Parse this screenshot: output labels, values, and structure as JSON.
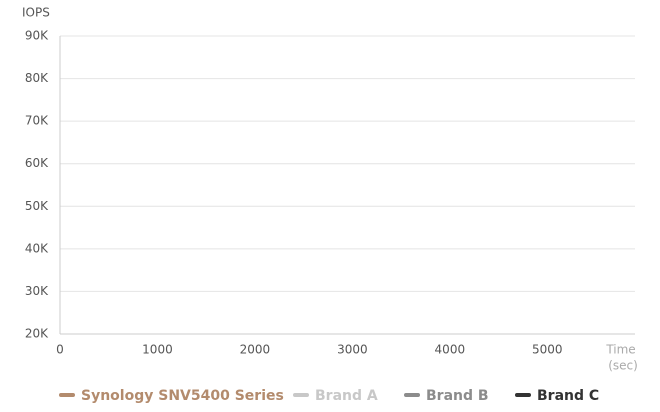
{
  "chart_data": {
    "type": "line",
    "ylabel": "IOPS",
    "xlabel": [
      "Time",
      "(sec)"
    ],
    "x": [],
    "series": [
      {
        "name": "Synology SNV5400 Series",
        "color": "#b38b6d",
        "values": []
      },
      {
        "name": "Brand A",
        "color": "#c8c8c8",
        "values": []
      },
      {
        "name": "Brand B",
        "color": "#8c8c8c",
        "values": []
      },
      {
        "name": "Brand C",
        "color": "#333333",
        "values": []
      }
    ],
    "xlim": [
      0,
      5900
    ],
    "xticks": [
      0,
      1000,
      2000,
      3000,
      4000,
      5000
    ],
    "ylim": [
      20000,
      90000
    ],
    "yticks": [
      {
        "value": 20000,
        "label": "20K"
      },
      {
        "value": 30000,
        "label": "30K"
      },
      {
        "value": 40000,
        "label": "40K"
      },
      {
        "value": 50000,
        "label": "50K"
      },
      {
        "value": 60000,
        "label": "60K"
      },
      {
        "value": 70000,
        "label": "70K"
      },
      {
        "value": 80000,
        "label": "80K"
      },
      {
        "value": 90000,
        "label": "90K"
      }
    ],
    "grid": true
  }
}
